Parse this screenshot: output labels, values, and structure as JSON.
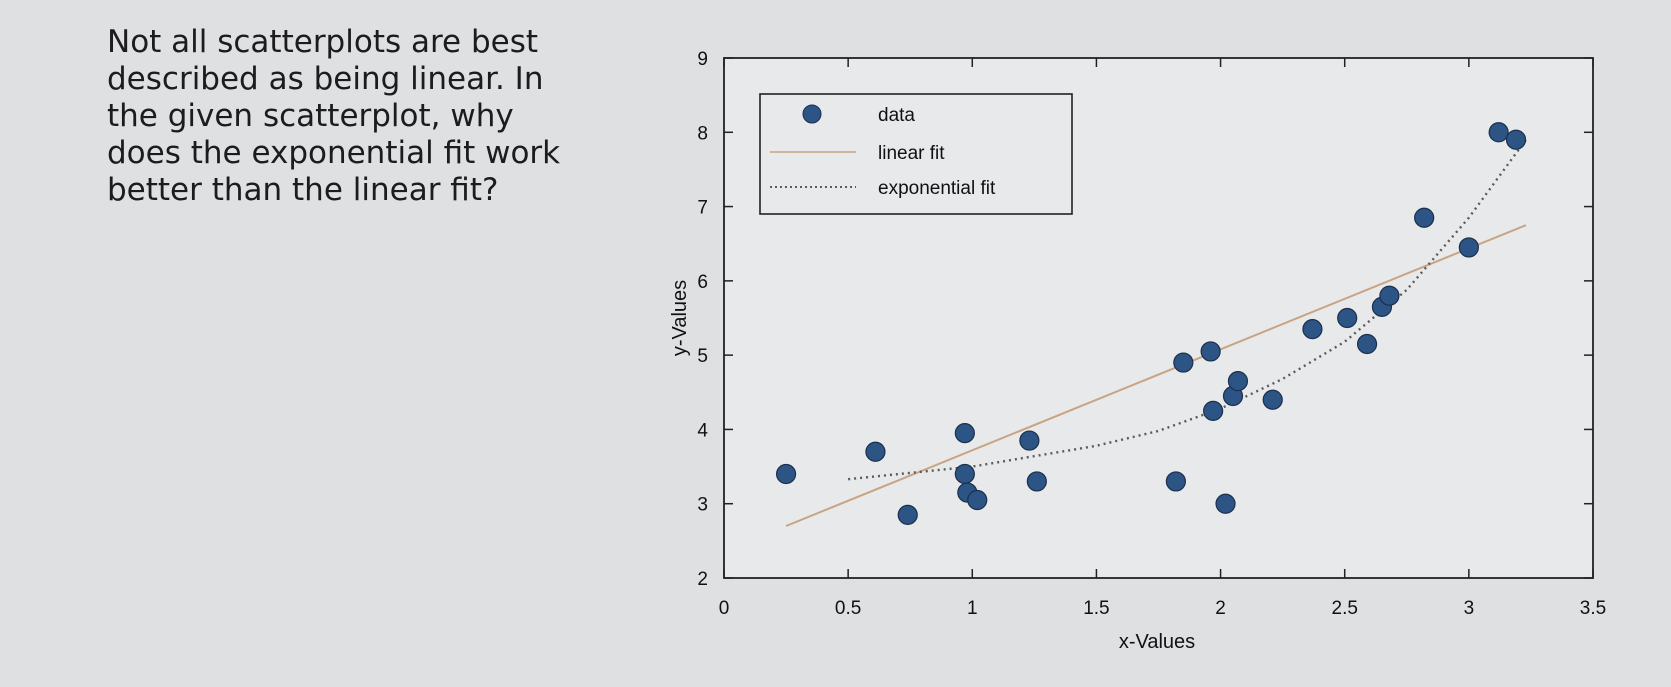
{
  "question": {
    "text": "Not all scatterplots are best\ndescribed as being linear. In\nthe given scatterplot, why\ndoes the exponential fit work\nbetter than the linear fit?"
  },
  "colors": {
    "marker": "#2c5484",
    "marker_edge": "#1c2f4c",
    "linear_fit": "#c8a483",
    "exponential_fit": "#5a5a5a",
    "axes": "#222222",
    "plot_background": "#e8e9ea"
  },
  "chart_data": {
    "type": "scatter",
    "xlabel": "x-Values",
    "ylabel": "y-Values",
    "xlim": [
      0,
      3.5
    ],
    "ylim": [
      2,
      9
    ],
    "xticks": [
      0,
      0.5,
      1,
      1.5,
      2,
      2.5,
      3,
      3.5
    ],
    "xtick_labels": [
      "0",
      "0.5",
      "1",
      "1.5",
      "2",
      "2.5",
      "3",
      "3.5"
    ],
    "yticks": [
      2,
      3,
      4,
      5,
      6,
      7,
      8,
      9
    ],
    "ytick_labels": [
      "2",
      "3",
      "4",
      "5",
      "6",
      "7",
      "8",
      "9"
    ],
    "grid": false,
    "legend_position": "top-left",
    "series": [
      {
        "name": "data",
        "kind": "markers",
        "points": [
          [
            0.25,
            3.4
          ],
          [
            0.61,
            3.7
          ],
          [
            0.74,
            2.85
          ],
          [
            0.97,
            3.95
          ],
          [
            0.97,
            3.4
          ],
          [
            0.98,
            3.15
          ],
          [
            1.02,
            3.05
          ],
          [
            1.23,
            3.85
          ],
          [
            1.26,
            3.3
          ],
          [
            1.82,
            3.3
          ],
          [
            1.85,
            4.9
          ],
          [
            1.96,
            5.05
          ],
          [
            1.97,
            4.25
          ],
          [
            2.02,
            3.0
          ],
          [
            2.05,
            4.45
          ],
          [
            2.07,
            4.65
          ],
          [
            2.21,
            4.4
          ],
          [
            2.37,
            5.35
          ],
          [
            2.51,
            5.5
          ],
          [
            2.59,
            5.15
          ],
          [
            2.65,
            5.65
          ],
          [
            2.68,
            5.8
          ],
          [
            2.82,
            6.85
          ],
          [
            3.0,
            6.45
          ],
          [
            3.12,
            8.0
          ],
          [
            3.19,
            7.9
          ]
        ]
      },
      {
        "name": "linear fit",
        "kind": "line",
        "style": "solid",
        "points": [
          [
            0.25,
            2.7
          ],
          [
            3.23,
            6.75
          ]
        ]
      },
      {
        "name": "exponential fit",
        "kind": "line",
        "style": "dotted",
        "points": [
          [
            0.5,
            3.33
          ],
          [
            1.0,
            3.5
          ],
          [
            1.5,
            3.78
          ],
          [
            1.75,
            3.98
          ],
          [
            2.0,
            4.28
          ],
          [
            2.25,
            4.68
          ],
          [
            2.5,
            5.18
          ],
          [
            2.75,
            5.88
          ],
          [
            3.0,
            6.85
          ],
          [
            3.23,
            7.9
          ]
        ]
      }
    ]
  }
}
